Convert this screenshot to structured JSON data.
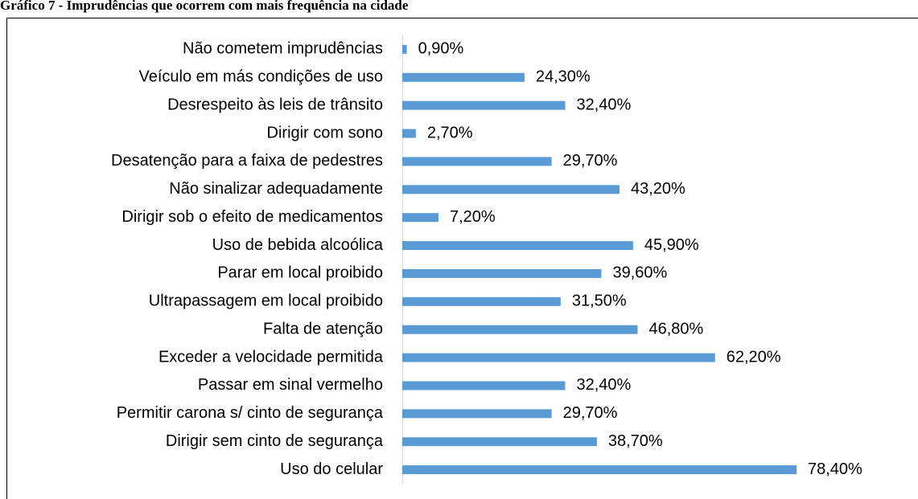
{
  "chart_data": {
    "type": "bar",
    "orientation": "horizontal",
    "title": "Gráfico 7 - Imprudências que ocorrem com mais frequência na cidade",
    "categories": [
      "Não cometem imprudências",
      "Veículo em más condições de uso",
      "Desrespeito às leis de trânsito",
      "Dirigir com sono",
      "Desatenção para a faixa de pedestres",
      "Não sinalizar adequadamente",
      "Dirigir sob o efeito de medicamentos",
      "Uso de bebida alcoólica",
      "Parar em local proibido",
      "Ultrapassagem em local proibido",
      "Falta de atenção",
      "Exceder a velocidade permitida",
      "Passar em sinal vermelho",
      "Permitir carona s/ cinto de segurança",
      "Dirigir sem cinto de segurança",
      "Uso do celular"
    ],
    "values": [
      0.9,
      24.3,
      32.4,
      2.7,
      29.7,
      43.2,
      7.2,
      45.9,
      39.6,
      31.5,
      46.8,
      62.2,
      32.4,
      29.7,
      38.7,
      78.4
    ],
    "value_labels": [
      "0,90%",
      "24,30%",
      "32,40%",
      "2,70%",
      "29,70%",
      "43,20%",
      "7,20%",
      "45,90%",
      "39,60%",
      "31,50%",
      "46,80%",
      "62,20%",
      "32,40%",
      "29,70%",
      "38,70%",
      "78,40%"
    ],
    "color": "#5b9bd5",
    "xlim": [
      0,
      80
    ]
  }
}
